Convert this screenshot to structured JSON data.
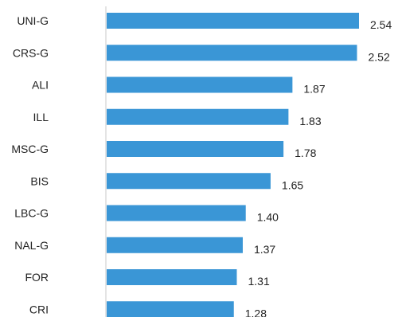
{
  "chart_data": {
    "type": "bar",
    "orientation": "horizontal",
    "categories": [
      "UNI-G",
      "CRS-G",
      "ALI",
      "ILL",
      "MSC-G",
      "BIS",
      "LBC-G",
      "NAL-G",
      "FOR",
      "CRI"
    ],
    "values": [
      2.54,
      2.52,
      1.87,
      1.83,
      1.78,
      1.65,
      1.4,
      1.37,
      1.31,
      1.28
    ],
    "value_labels": [
      "2.54",
      "2.52",
      "1.87",
      "1.83",
      "1.78",
      "1.65",
      "1.40",
      "1.37",
      "1.31",
      "1.28"
    ],
    "title": "",
    "xlabel": "",
    "ylabel": "",
    "xlim": [
      0,
      2.7
    ],
    "grid": false,
    "legend": "none",
    "bar_color": "#3a96d6",
    "axis_color": "#c8c8c8"
  }
}
